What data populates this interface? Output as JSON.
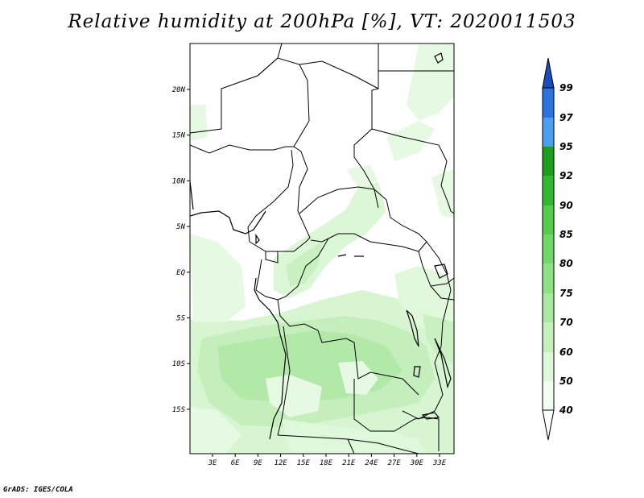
{
  "title": "Relative humidity at 200hPa [%], VT: 2020011503",
  "credit": "GrADS: IGES/COLA",
  "map": {
    "lon_labels": [
      "3E",
      "6E",
      "9E",
      "12E",
      "15E",
      "18E",
      "21E",
      "24E",
      "27E",
      "30E",
      "33E"
    ],
    "lat_labels": [
      "20N",
      "15N",
      "10N",
      "5N",
      "EQ",
      "5S",
      "10S",
      "15S"
    ]
  },
  "colorbar": {
    "levels": [
      "40",
      "50",
      "60",
      "70",
      "75",
      "80",
      "85",
      "90",
      "92",
      "95",
      "97",
      "99"
    ],
    "colors": [
      "#f0fff0",
      "#dcf8d8",
      "#c4f0bc",
      "#aaeaa0",
      "#8ee284",
      "#70d868",
      "#54cc4c",
      "#34b830",
      "#1c9e1c",
      "#4aa0ee",
      "#2a74de",
      "#1a4cc0"
    ]
  }
}
